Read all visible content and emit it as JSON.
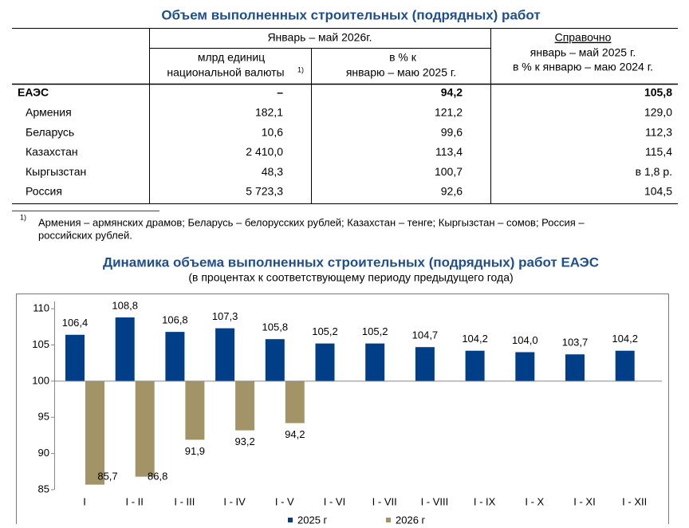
{
  "title": "Объем выполненных строительных (подрядных) работ",
  "table": {
    "header": {
      "period": "Январь – май 2026г.",
      "col1": [
        "млрд единиц",
        "национальной валюты"
      ],
      "col1_note": "1)",
      "col2": [
        "в % к",
        "январю – маю 2025 г."
      ],
      "col3": [
        "Справочно",
        "январь – май 2025 г.",
        "в % к январю – маю 2024 г."
      ]
    },
    "rows": [
      [
        "ЕАЭС",
        "–",
        "94,2",
        "105,8"
      ],
      [
        "Армения",
        "182,1",
        "121,2",
        "129,0"
      ],
      [
        "Беларусь",
        "10,6",
        "99,6",
        "112,3"
      ],
      [
        "Казахстан",
        "2 410,0",
        "113,4",
        "115,4"
      ],
      [
        "Кыргызстан",
        "48,3",
        "100,7",
        "в 1,8 р."
      ],
      [
        "Россия",
        "5 723,3",
        "92,6",
        "104,5"
      ]
    ]
  },
  "footnote": {
    "mark": "1)",
    "lines": [
      "Армения – армянских драмов; Беларусь – белорусских рублей; Казахстан – тенге; Кыргызстан – сомов; Россия –",
      "российских рублей."
    ]
  },
  "chart_data": {
    "type": "bar",
    "title": "Динамика объема выполненных строительных (подрядных) работ ЕАЭС",
    "subtitle": "(в процентах к соответствующему периоду предыдущего года)",
    "categories": [
      "I",
      "I - II",
      "I - III",
      "I - IV",
      "I - V",
      "I - VI",
      "I - VII",
      "I - VIII",
      "I - IX",
      "I - X",
      "I - XI",
      "I - XII"
    ],
    "baseline": 100,
    "series": [
      {
        "name": "2025 г",
        "color": "#003f87",
        "values": [
          106.4,
          108.8,
          106.8,
          107.3,
          105.8,
          105.2,
          105.2,
          104.7,
          104.2,
          104.0,
          103.7,
          104.2
        ],
        "value_labels": [
          "106,4",
          "108,8",
          "106,8",
          "107,3",
          "105,8",
          "105,2",
          "105,2",
          "104,7",
          "104,2",
          "104,0",
          "103,7",
          "104,2"
        ]
      },
      {
        "name": "2026 г",
        "color": "#a39467",
        "values": [
          85.7,
          86.8,
          91.9,
          93.2,
          94.2,
          null,
          null,
          null,
          null,
          null,
          null,
          null
        ],
        "value_labels": [
          "85,7",
          "86,8",
          "91,9",
          "93,2",
          "94,2",
          null,
          null,
          null,
          null,
          null,
          null,
          null
        ]
      }
    ],
    "ylim": [
      85,
      111
    ],
    "yticks": [
      85,
      90,
      95,
      100,
      105,
      110
    ]
  }
}
